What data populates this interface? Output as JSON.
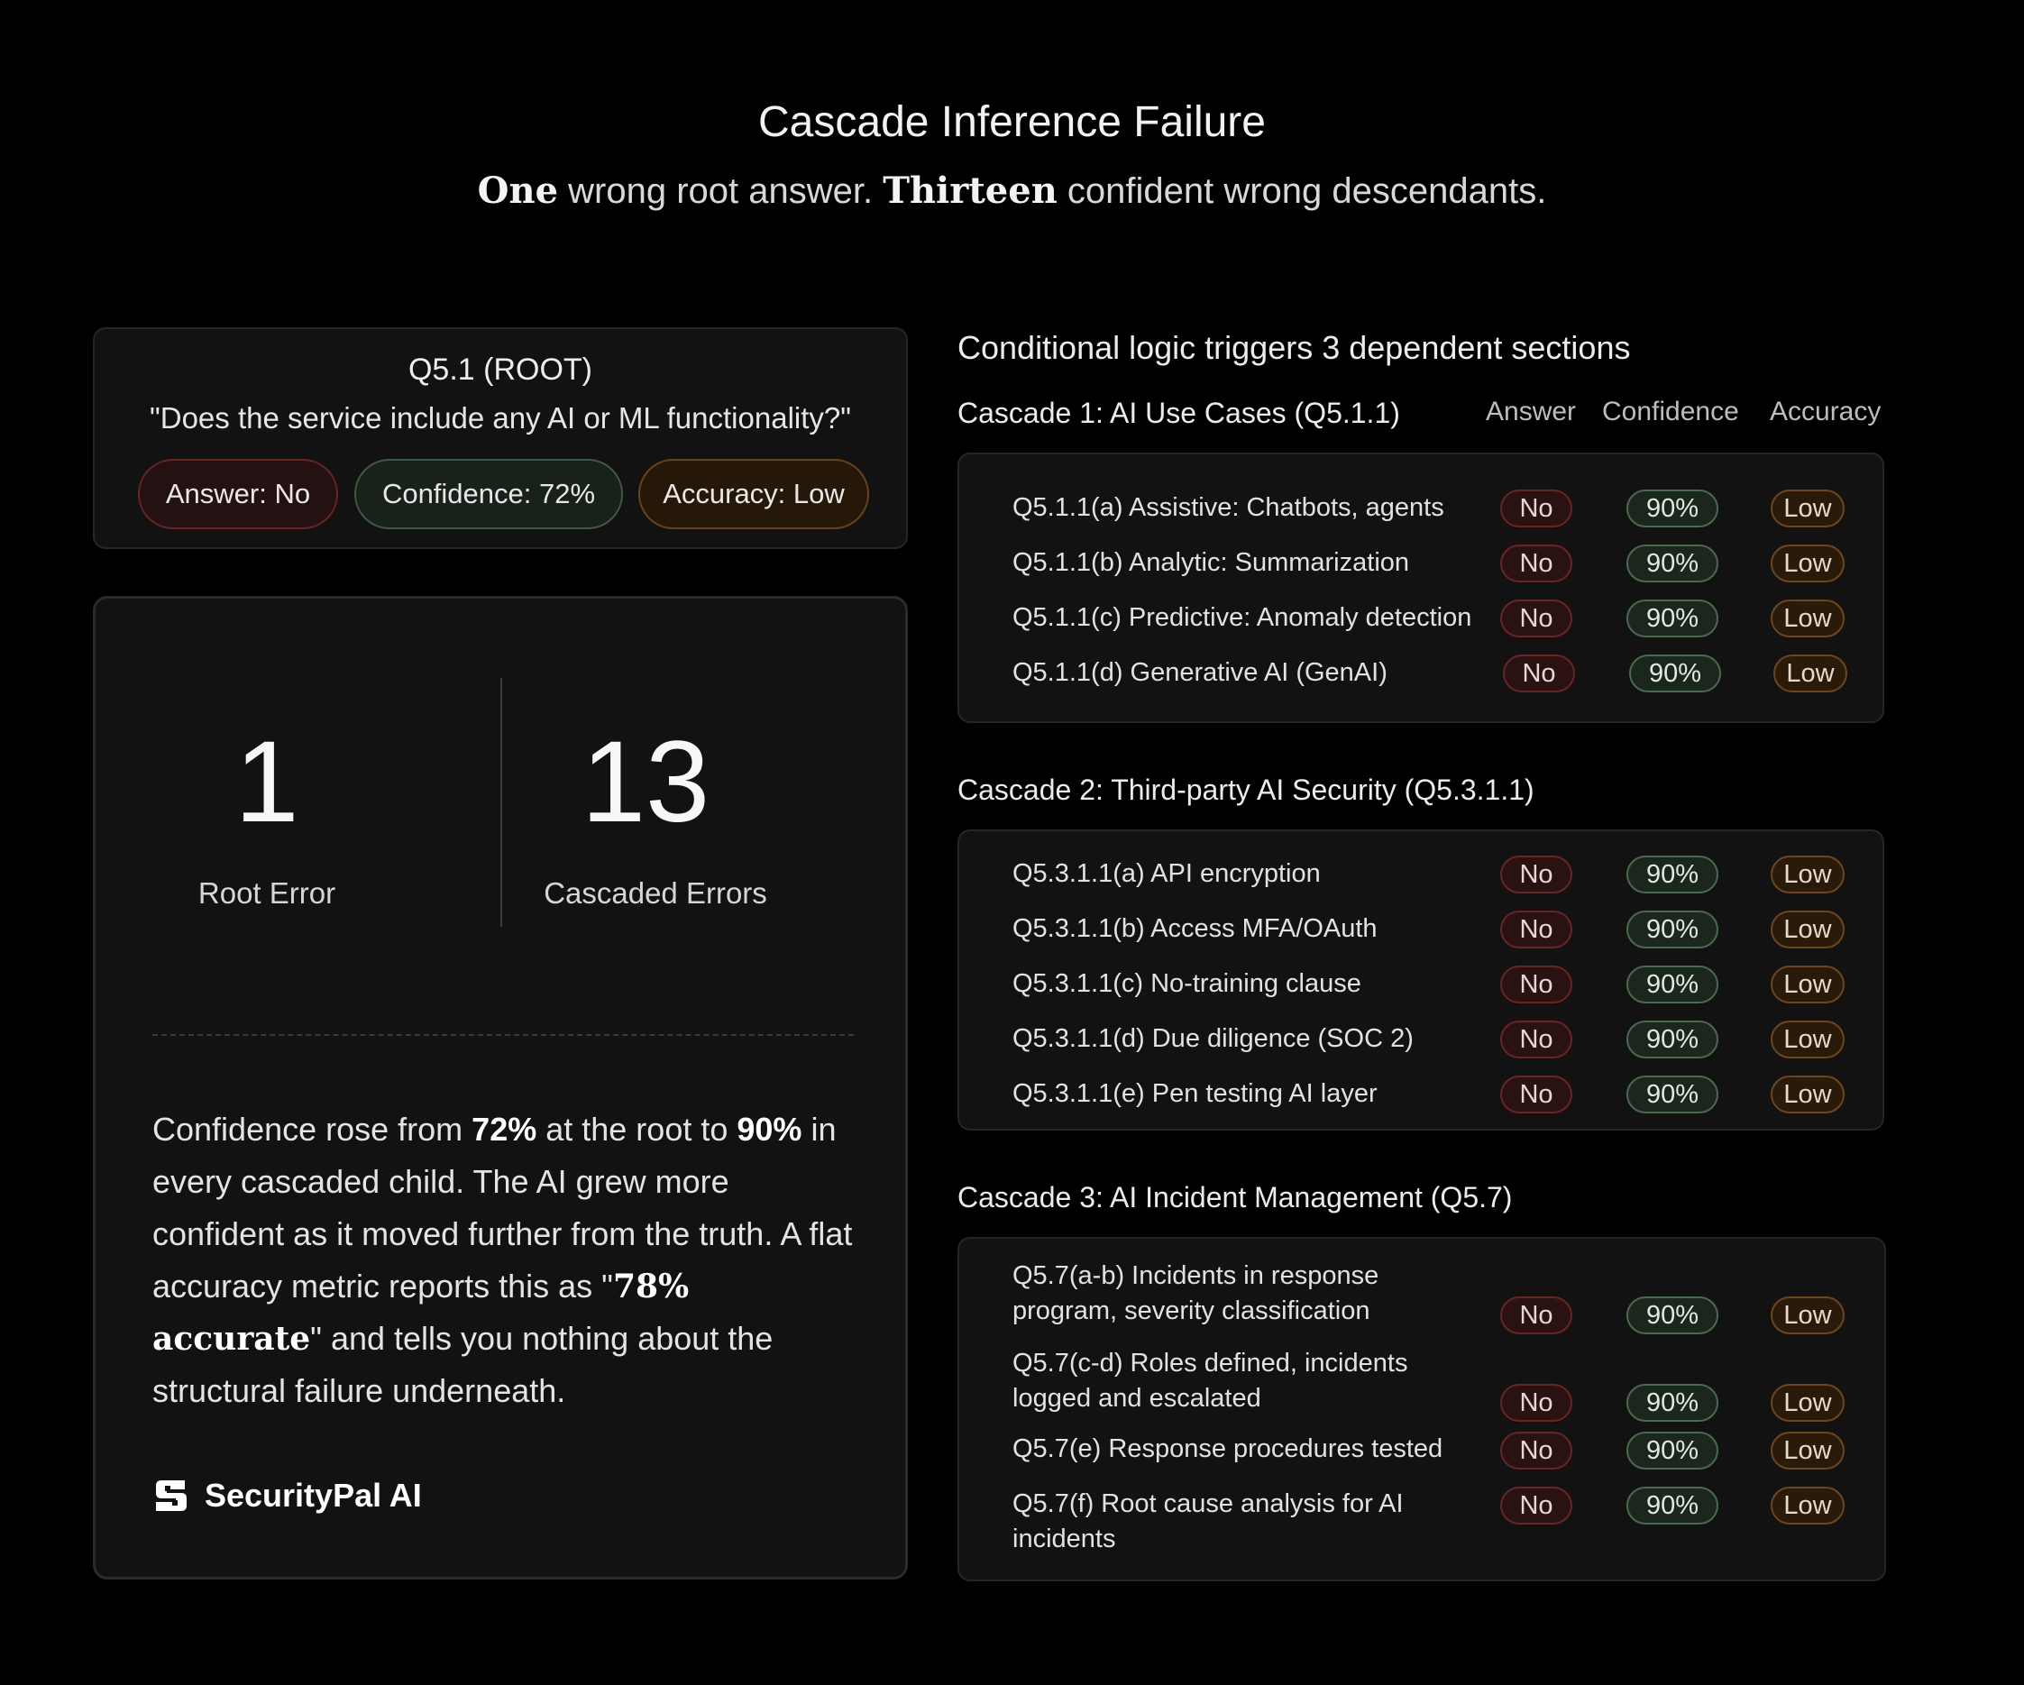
{
  "header": {
    "title": "Cascade Inference Failure",
    "subtitle_one": "One",
    "subtitle_mid": " wrong root answer. ",
    "subtitle_thirteen": "Thirteen",
    "subtitle_end": " confident wrong descendants."
  },
  "root": {
    "label": "Q5.1 (ROOT)",
    "question": "\"Does the service include any AI or ML functionality?\"",
    "answer": "Answer: No",
    "confidence": "Confidence: 72%",
    "accuracy": "Accuracy: Low"
  },
  "stats": {
    "root_error_count": "1",
    "root_error_label": "Root Error",
    "cascaded_count": "13",
    "cascaded_label": "Cascaded Errors"
  },
  "body": {
    "p1": "Confidence rose from ",
    "b1": "72%",
    "p2": " at the root to ",
    "b2": "90%",
    "p3": " in every cascaded child. The AI grew more confident as it moved further from the truth. A flat accuracy metric reports this as \"",
    "b3": "78% accurate",
    "p4": "\" and tells you nothing about the structural failure underneath."
  },
  "brand": {
    "name": "SecurityPal AI",
    "icon": "securitypal-logo-icon"
  },
  "right": {
    "heading": "Conditional logic triggers 3 dependent sections",
    "columns": {
      "answer": "Answer",
      "confidence": "Confidence",
      "accuracy": "Accuracy"
    }
  },
  "cascades": [
    {
      "title": "Cascade 1: AI Use Cases (Q5.1.1)",
      "rows": [
        {
          "label": "Q5.1.1(a) Assistive: Chatbots, agents",
          "answer": "No",
          "confidence": "90%",
          "accuracy": "Low"
        },
        {
          "label": "Q5.1.1(b) Analytic: Summarization",
          "answer": "No",
          "confidence": "90%",
          "accuracy": "Low"
        },
        {
          "label": "Q5.1.1(c) Predictive: Anomaly detection",
          "answer": "No",
          "confidence": "90%",
          "accuracy": "Low"
        },
        {
          "label": "Q5.1.1(d) Generative AI (GenAI)",
          "answer": "No",
          "confidence": "90%",
          "accuracy": "Low"
        }
      ]
    },
    {
      "title": "Cascade 2: Third-party AI Security (Q5.3.1.1)",
      "rows": [
        {
          "label": "Q5.3.1.1(a) API encryption",
          "answer": "No",
          "confidence": "90%",
          "accuracy": "Low"
        },
        {
          "label": "Q5.3.1.1(b) Access MFA/OAuth",
          "answer": "No",
          "confidence": "90%",
          "accuracy": "Low"
        },
        {
          "label": "Q5.3.1.1(c) No-training clause",
          "answer": "No",
          "confidence": "90%",
          "accuracy": "Low"
        },
        {
          "label": "Q5.3.1.1(d) Due diligence (SOC 2)",
          "answer": "No",
          "confidence": "90%",
          "accuracy": "Low"
        },
        {
          "label": "Q5.3.1.1(e) Pen testing AI layer",
          "answer": "No",
          "confidence": "90%",
          "accuracy": "Low"
        }
      ]
    },
    {
      "title": "Cascade 3: AI Incident Management (Q5.7)",
      "rows": [
        {
          "label": "Q5.7(a-b) Incidents in response program, severity classification",
          "answer": "No",
          "confidence": "90%",
          "accuracy": "Low"
        },
        {
          "label": "Q5.7(c-d) Roles defined, incidents logged and escalated",
          "answer": "No",
          "confidence": "90%",
          "accuracy": "Low"
        },
        {
          "label": "Q5.7(e) Response procedures tested",
          "answer": "No",
          "confidence": "90%",
          "accuracy": "Low"
        },
        {
          "label": "Q5.7(f) Root cause analysis for AI incidents",
          "answer": "No",
          "confidence": "90%",
          "accuracy": "Low"
        }
      ]
    }
  ]
}
